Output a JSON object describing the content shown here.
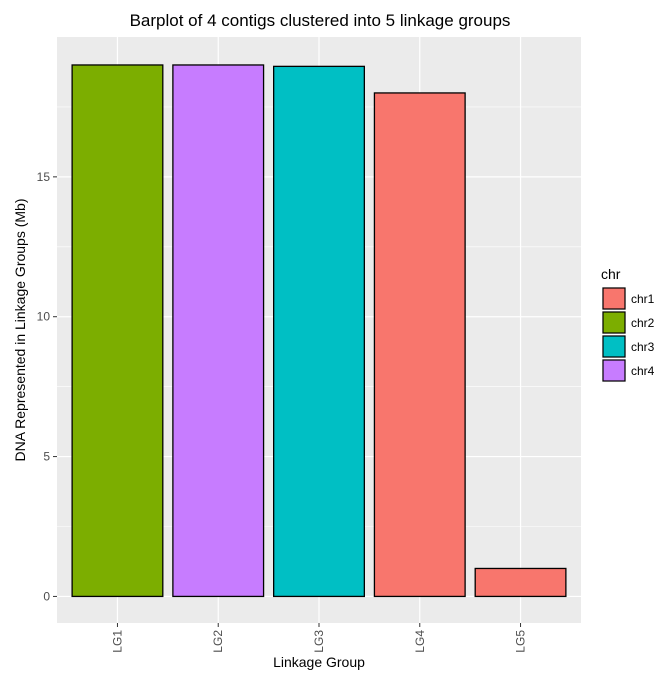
{
  "chart_data": {
    "type": "bar",
    "title": "Barplot of 4 contigs clustered into 5 linkage groups",
    "xlabel": "Linkage Group",
    "ylabel": "DNA Represented in Linkage Groups (Mb)",
    "categories": [
      "LG1",
      "LG2",
      "LG3",
      "LG4",
      "LG5"
    ],
    "values": [
      19.0,
      19.0,
      18.95,
      18.0,
      1.0
    ],
    "fill_group": [
      "chr2",
      "chr4",
      "chr3",
      "chr1",
      "chr1"
    ],
    "ylim": [
      -0.95,
      20.0
    ],
    "yticks": [
      0,
      5,
      10,
      15
    ],
    "grid": true,
    "legend": {
      "title": "chr",
      "position": "right",
      "entries": [
        {
          "label": "chr1",
          "color": "#F8766D"
        },
        {
          "label": "chr2",
          "color": "#7CAE00"
        },
        {
          "label": "chr3",
          "color": "#00BFC4"
        },
        {
          "label": "chr4",
          "color": "#C77CFF"
        }
      ]
    }
  },
  "colors": {
    "panel_background": "#EBEBEB",
    "grid_major": "#FFFFFF",
    "bar_outline": "#000000"
  }
}
